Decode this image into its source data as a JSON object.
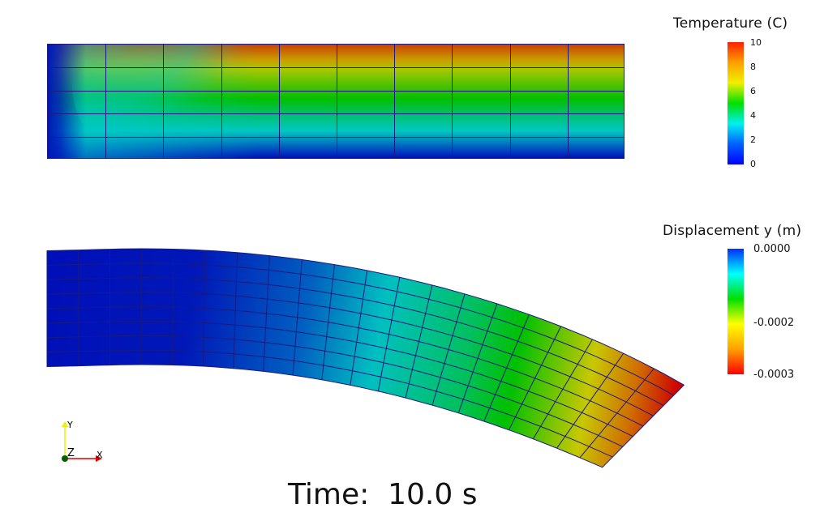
{
  "scene": {
    "background": "#ffffff",
    "time_label": "Time:  10.0 s"
  },
  "temperature_plot": {
    "title": "Temperature (C)",
    "columns": 10,
    "rows": 5,
    "mesh_color": "#1a1a80",
    "legend": {
      "title": "Temperature (C)",
      "range": [
        0,
        10
      ],
      "ticks": [
        "10",
        "8",
        "6",
        "4",
        "2",
        "0"
      ],
      "colors": [
        "#ff2000",
        "#ffa000",
        "#f0f000",
        "#00e000",
        "#00f0f0",
        "#0060ff",
        "#0000ff"
      ]
    }
  },
  "displacement_plot": {
    "title": "Displacement y (m)",
    "columns": 20,
    "rows": 8,
    "mesh_color": "#1a1a80",
    "legend": {
      "title": "Displacement y (m)",
      "range": [
        -0.0003,
        0.0
      ],
      "ticks": [
        "0.0000",
        "-0.0002",
        "-0.0003"
      ],
      "colors": [
        "#0030ff",
        "#00ffff",
        "#00e000",
        "#ffff00",
        "#ffa000",
        "#ff0000"
      ]
    }
  },
  "axes_triad": {
    "x_label": "X",
    "y_label": "Y",
    "z_label": "Z",
    "x_color": "#e00000",
    "y_color": "#f0f000",
    "z_color": "#006000"
  },
  "chart_data": [
    {
      "type": "heatmap",
      "title": "Temperature (C)",
      "xlabel": "",
      "ylabel": "",
      "colorbar_range": [
        0,
        10
      ],
      "colorbar_ticks": [
        0,
        2,
        4,
        6,
        8,
        10
      ],
      "grid": {
        "columns": 10,
        "rows": 5
      },
      "description_rows_top_to_bottom_approx_C": [
        9.5,
        7.5,
        5.5,
        3.0,
        1.0
      ]
    },
    {
      "type": "heatmap",
      "title": "Displacement y (m)",
      "xlabel": "",
      "ylabel": "",
      "colorbar_range": [
        -0.0003,
        0.0
      ],
      "colorbar_ticks": [
        0.0,
        -0.0002,
        -0.0003
      ],
      "grid": {
        "columns": 20,
        "rows": 8
      },
      "description_columns_left_to_right_approx_m": [
        0.0,
        0.0,
        0.0,
        0.0,
        -1e-05,
        -2e-05,
        -3e-05,
        -5e-05,
        -7e-05,
        -9e-05,
        -0.00011,
        -0.00013,
        -0.00015,
        -0.00017,
        -0.00019,
        -0.00021,
        -0.00023,
        -0.00025,
        -0.00027,
        -0.0003
      ]
    }
  ]
}
